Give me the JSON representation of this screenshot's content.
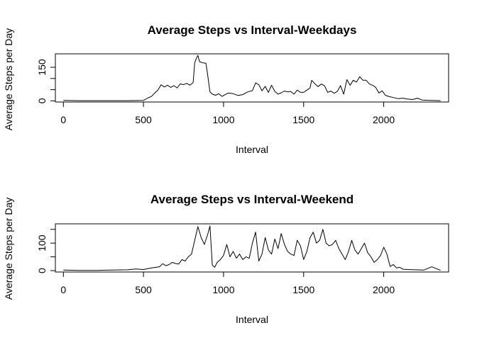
{
  "chart_data": [
    {
      "type": "line",
      "title": "Average Steps vs Interval-Weekdays",
      "xlabel": "Interval",
      "ylabel": "Average Steps per Day",
      "xlim": [
        -50,
        2405
      ],
      "ylim": [
        -5,
        210
      ],
      "xticks": [
        0,
        500,
        1000,
        1500,
        2000
      ],
      "yticks": [
        0,
        50,
        100,
        150
      ],
      "ytick_labels": [
        "0",
        "",
        "",
        "150"
      ],
      "color": "#000000",
      "series": [
        {
          "x": [
            0,
            100,
            200,
            300,
            400,
            500,
            530,
            550,
            570,
            590,
            610,
            630,
            650,
            670,
            690,
            710,
            730,
            750,
            770,
            790,
            810,
            820,
            830,
            840,
            850,
            870,
            890,
            900,
            915,
            930,
            950,
            970,
            990,
            1010,
            1030,
            1060,
            1090,
            1120,
            1150,
            1180,
            1200,
            1220,
            1240,
            1260,
            1280,
            1300,
            1320,
            1340,
            1360,
            1380,
            1400,
            1420,
            1440,
            1460,
            1480,
            1500,
            1520,
            1540,
            1550,
            1570,
            1590,
            1610,
            1630,
            1650,
            1670,
            1690,
            1710,
            1730,
            1750,
            1770,
            1790,
            1810,
            1830,
            1850,
            1870,
            1890,
            1910,
            1930,
            1950,
            1970,
            1990,
            2010,
            2030,
            2060,
            2090,
            2120,
            2150,
            2180,
            2210,
            2240,
            2270,
            2300,
            2355
          ],
          "values": [
            2,
            1,
            1,
            1,
            1,
            2,
            14,
            20,
            35,
            48,
            72,
            62,
            70,
            60,
            68,
            58,
            76,
            72,
            78,
            70,
            82,
            170,
            190,
            203,
            175,
            170,
            168,
            120,
            40,
            30,
            25,
            32,
            20,
            28,
            35,
            32,
            24,
            28,
            40,
            46,
            80,
            72,
            45,
            65,
            38,
            70,
            42,
            30,
            36,
            44,
            40,
            42,
            30,
            48,
            38,
            38,
            48,
            58,
            92,
            76,
            64,
            75,
            68,
            38,
            44,
            34,
            42,
            68,
            30,
            95,
            70,
            92,
            84,
            108,
            92,
            92,
            76,
            70,
            60,
            35,
            45,
            25,
            20,
            15,
            10,
            12,
            8,
            6,
            12,
            4,
            3,
            2,
            1
          ]
        }
      ]
    },
    {
      "type": "line",
      "title": "Average Steps vs Interval-Weekend",
      "xlabel": "Interval",
      "ylabel": "Average Steps per Day",
      "xlim": [
        -50,
        2405
      ],
      "ylim": [
        -5,
        170
      ],
      "xticks": [
        0,
        500,
        1000,
        1500,
        2000
      ],
      "yticks": [
        0,
        50,
        100,
        150
      ],
      "ytick_labels": [
        "0",
        "",
        "100",
        ""
      ],
      "color": "#000000",
      "series": [
        {
          "x": [
            0,
            100,
            200,
            300,
            400,
            450,
            500,
            550,
            600,
            620,
            640,
            660,
            680,
            700,
            720,
            740,
            760,
            780,
            800,
            820,
            840,
            860,
            880,
            900,
            915,
            930,
            945,
            960,
            980,
            1000,
            1020,
            1040,
            1060,
            1080,
            1100,
            1120,
            1140,
            1160,
            1180,
            1200,
            1220,
            1240,
            1260,
            1280,
            1300,
            1320,
            1340,
            1360,
            1380,
            1400,
            1420,
            1440,
            1460,
            1480,
            1500,
            1520,
            1540,
            1560,
            1580,
            1600,
            1620,
            1640,
            1660,
            1680,
            1700,
            1720,
            1740,
            1760,
            1780,
            1800,
            1820,
            1840,
            1860,
            1880,
            1900,
            1920,
            1940,
            1960,
            1980,
            2000,
            2020,
            2040,
            2060,
            2080,
            2100,
            2120,
            2150,
            2200,
            2250,
            2300,
            2355
          ],
          "values": [
            2,
            1,
            1,
            2,
            3,
            6,
            4,
            10,
            14,
            25,
            18,
            22,
            30,
            26,
            24,
            40,
            35,
            50,
            60,
            110,
            160,
            120,
            95,
            130,
            162,
            20,
            12,
            30,
            40,
            55,
            95,
            50,
            70,
            45,
            60,
            40,
            50,
            45,
            100,
            140,
            35,
            60,
            120,
            75,
            60,
            115,
            80,
            135,
            95,
            70,
            60,
            55,
            110,
            90,
            40,
            70,
            120,
            140,
            100,
            110,
            150,
            100,
            90,
            95,
            110,
            80,
            60,
            40,
            70,
            110,
            75,
            60,
            80,
            100,
            65,
            50,
            30,
            40,
            55,
            85,
            60,
            15,
            22,
            10,
            12,
            5,
            4,
            3,
            2,
            14,
            1
          ]
        }
      ]
    }
  ]
}
